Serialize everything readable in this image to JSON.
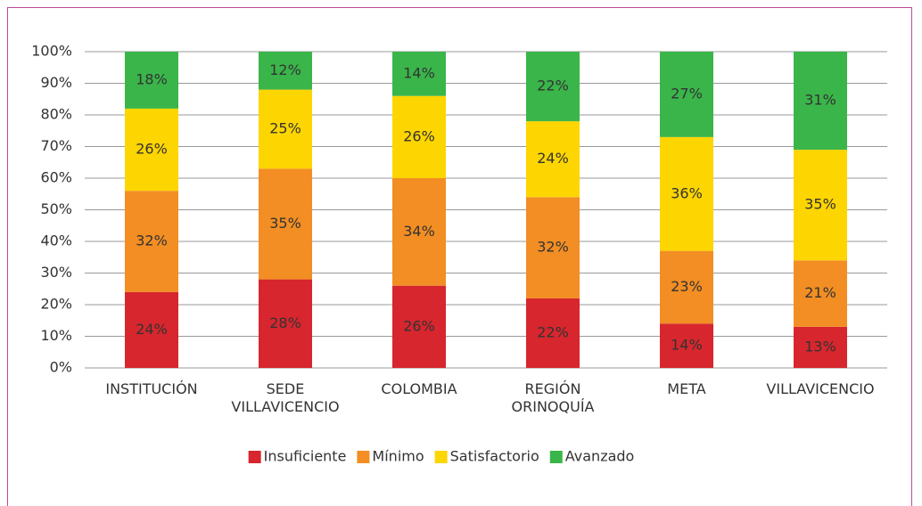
{
  "chart_data": {
    "type": "stacked_bar",
    "categories": [
      "INSTITUCIÓN",
      "SEDE VILLAVICENCIO",
      "COLOMBIA",
      "REGIÓN ORINOQUÍA",
      "META",
      "VILLAVICENCIO"
    ],
    "series": [
      {
        "name": "Insuficiente",
        "color": "#d7262e",
        "values": [
          24,
          28,
          26,
          22,
          14,
          13
        ],
        "value_labels": [
          "24%",
          "28%",
          "26%",
          "22%",
          "14%",
          "13%"
        ]
      },
      {
        "name": "Mínimo",
        "color": "#f28e23",
        "values": [
          32,
          35,
          34,
          32,
          23,
          21
        ],
        "value_labels": [
          "32%",
          "35%",
          "34%",
          "32%",
          "23%",
          "21%"
        ]
      },
      {
        "name": "Satisfactorio",
        "color": "#fdd500",
        "values": [
          26,
          25,
          26,
          24,
          36,
          35
        ],
        "value_labels": [
          "26%",
          "25%",
          "26%",
          "24%",
          "36%",
          "35%"
        ]
      },
      {
        "name": "Avanzado",
        "color": "#3ab54a",
        "values": [
          18,
          12,
          14,
          22,
          27,
          31
        ],
        "value_labels": [
          "18%",
          "12%",
          "14%",
          "22%",
          "27%",
          "31%"
        ]
      }
    ],
    "ylim": [
      0,
      100
    ],
    "yticks": [
      {
        "value": 0,
        "label": "0%"
      },
      {
        "value": 10,
        "label": "10%"
      },
      {
        "value": 20,
        "label": "20%"
      },
      {
        "value": 30,
        "label": "30%"
      },
      {
        "value": 40,
        "label": "40%"
      },
      {
        "value": 50,
        "label": "50%"
      },
      {
        "value": 60,
        "label": "60%"
      },
      {
        "value": 70,
        "label": "70%"
      },
      {
        "value": 80,
        "label": "80%"
      },
      {
        "value": 90,
        "label": "90%"
      },
      {
        "value": 100,
        "label": "100%"
      }
    ],
    "grid": true,
    "legend": "bottom"
  }
}
